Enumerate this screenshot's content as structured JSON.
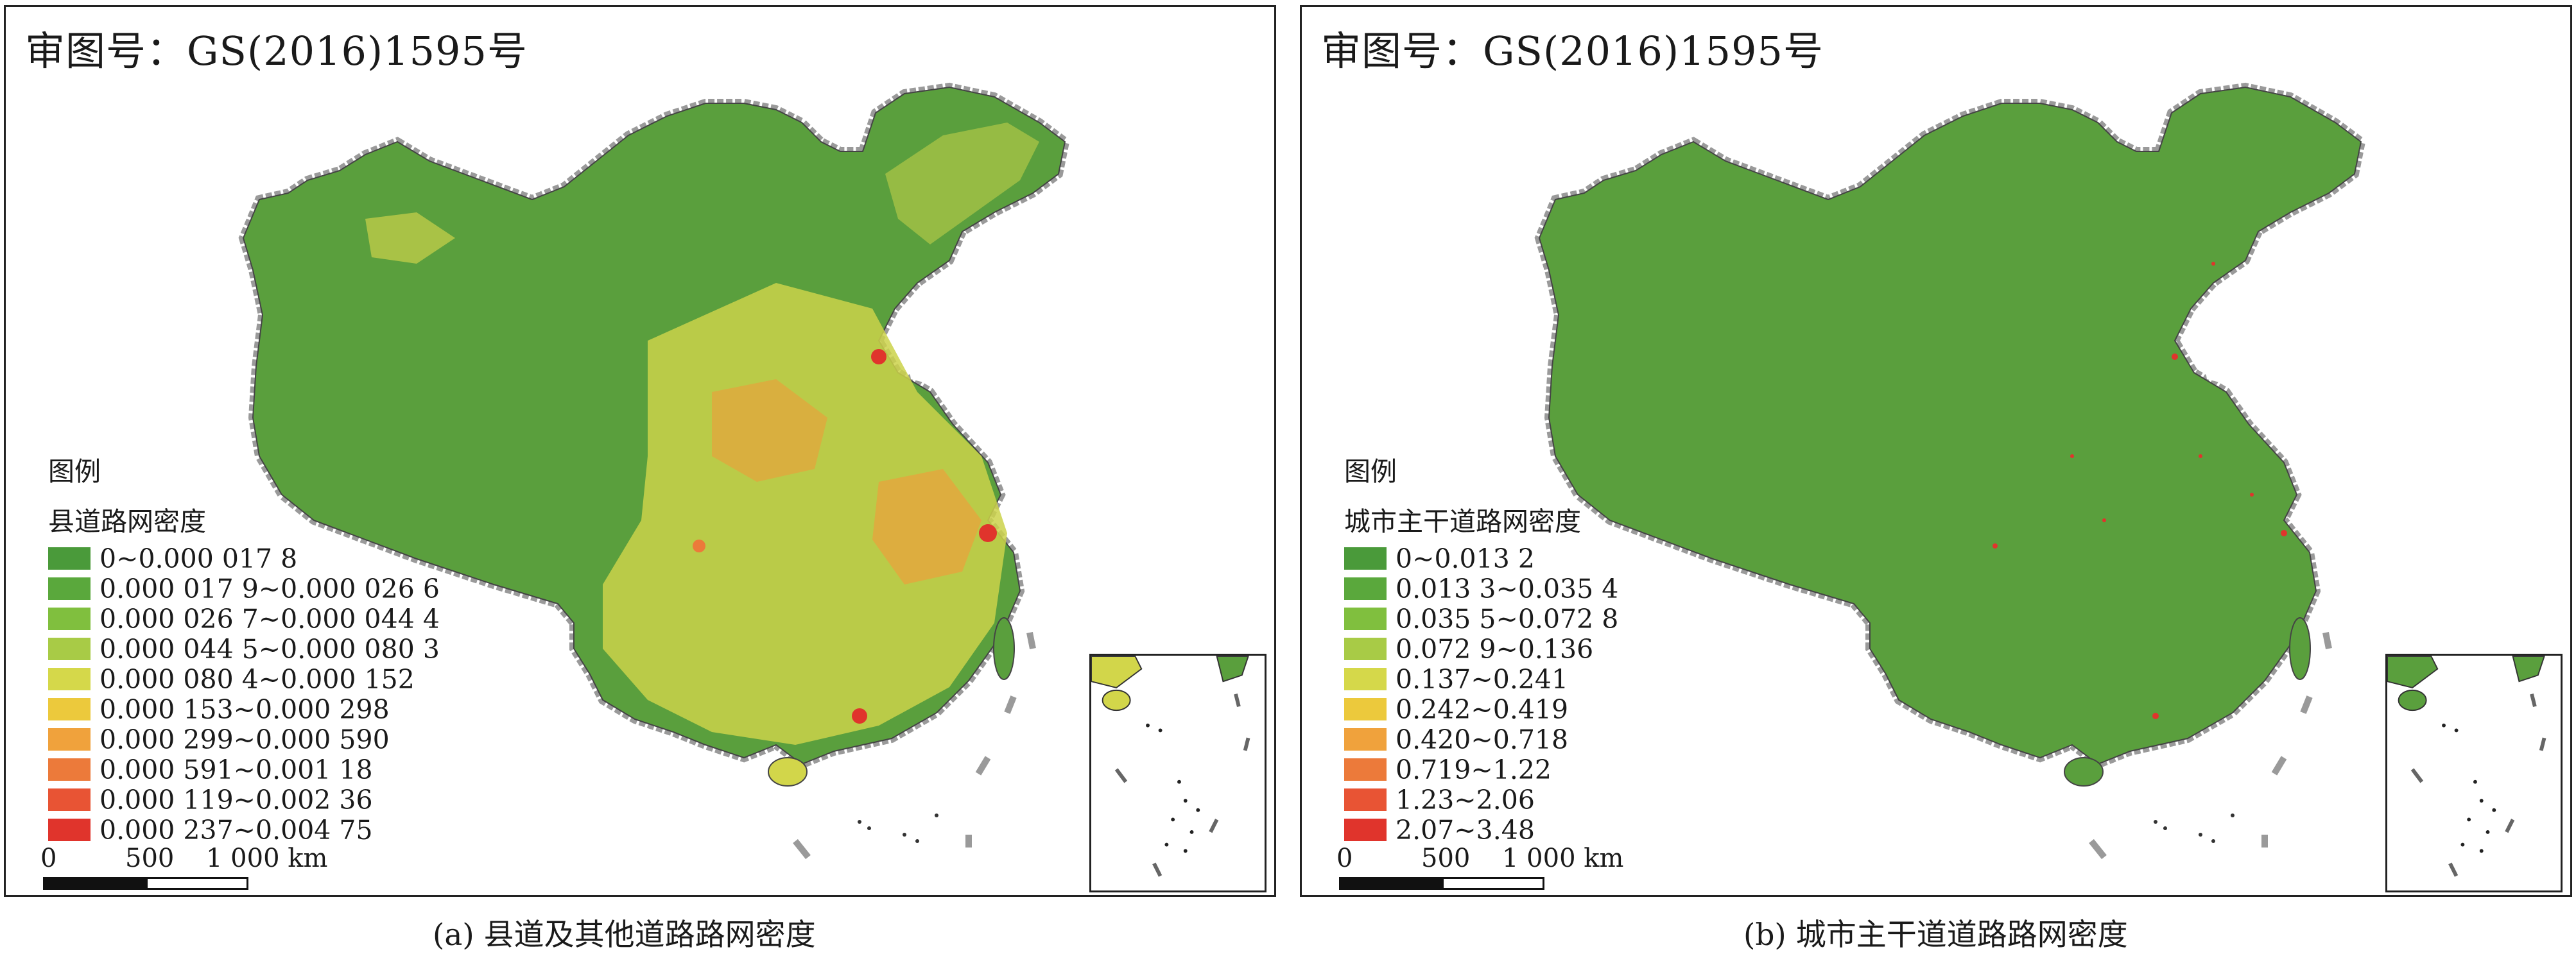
{
  "approval_number": "审图号：GS(2016)1595号",
  "panels": [
    {
      "caption": "(a) 县道及其他道路路网密度",
      "legend": {
        "heading": "图例",
        "subtitle": "县道路网密度",
        "items": [
          {
            "label": "0~0.000 017 8",
            "color": "#4a9a3a"
          },
          {
            "label": "0.000 017 9~0.000 026 6",
            "color": "#5aa83c"
          },
          {
            "label": "0.000 026 7~0.000 044 4",
            "color": "#80bf3e"
          },
          {
            "label": "0.000 044 5~0.000 080 3",
            "color": "#a8cb46"
          },
          {
            "label": "0.000 080 4~0.000 152",
            "color": "#d5d84a"
          },
          {
            "label": "0.000 153~0.000 298",
            "color": "#ecc93c"
          },
          {
            "label": "0.000 299~0.000 590",
            "color": "#f0a23c"
          },
          {
            "label": "0.000 591~0.001 18",
            "color": "#ec7a3a"
          },
          {
            "label": "0.000 119~0.002 36",
            "color": "#e85434"
          },
          {
            "label": "0.000 237~0.004 75",
            "color": "#e0342c"
          }
        ]
      }
    },
    {
      "caption": "(b) 城市主干道道路路网密度",
      "legend": {
        "heading": "图例",
        "subtitle": "城市主干道路网密度",
        "items": [
          {
            "label": "0~0.013 2",
            "color": "#4a9a3a"
          },
          {
            "label": "0.013 3~0.035 4",
            "color": "#5aa83c"
          },
          {
            "label": "0.035 5~0.072 8",
            "color": "#80bf3e"
          },
          {
            "label": "0.072 9~0.136",
            "color": "#a8cb46"
          },
          {
            "label": "0.137~0.241",
            "color": "#d5d84a"
          },
          {
            "label": "0.242~0.419",
            "color": "#ecc93c"
          },
          {
            "label": "0.420~0.718",
            "color": "#f0a23c"
          },
          {
            "label": "0.719~1.22",
            "color": "#ec7a3a"
          },
          {
            "label": "1.23~2.06",
            "color": "#e85434"
          },
          {
            "label": "2.07~3.48",
            "color": "#e0342c"
          }
        ]
      }
    }
  ],
  "scale_bar": {
    "zero": "0",
    "mid": "500",
    "max": "1 000 km"
  },
  "map_colors": {
    "base_green": "#5a9f3d",
    "yellow": "#d2d64a",
    "orange": "#ef9d3a",
    "red": "#e0342c",
    "border": "#9a9a9a"
  }
}
